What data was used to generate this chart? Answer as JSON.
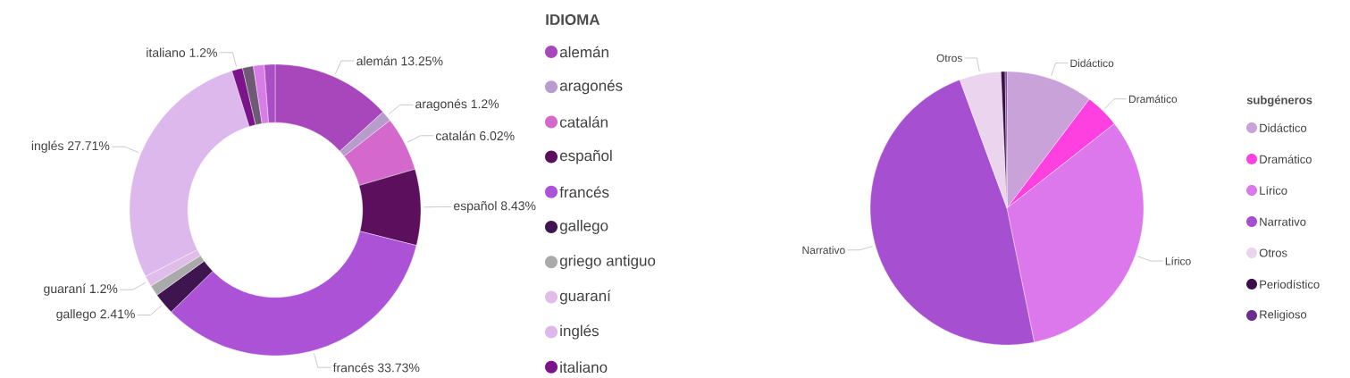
{
  "chart_data": [
    {
      "type": "donut",
      "legend_title": "IDIOMA",
      "legend": "right",
      "categories": [
        "alemán",
        "aragonés",
        "catalán",
        "español",
        "francés",
        "gallego",
        "griego antiguo",
        "guaraní",
        "inglés",
        "italiano",
        null,
        null,
        null
      ],
      "values": [
        13.25,
        1.2,
        6.02,
        8.43,
        33.73,
        2.41,
        1.2,
        1.2,
        27.71,
        1.2,
        1.2,
        1.2,
        1.2
      ],
      "colors": [
        "#a846bc",
        "#b89ccc",
        "#d468cc",
        "#5c0f5c",
        "#ac52d6",
        "#3f1550",
        "#aaaaaa",
        "#e0bde8",
        "#dcb8ec",
        "#7a1488",
        "#6e5a74",
        "#d87ce8",
        "#a94fc6"
      ],
      "value_labels": [
        "alemán 13.25%",
        "aragonés 1.2%",
        "catalán 6.02%",
        "español 8.43%",
        "francés 33.73%",
        "gallego 2.41%",
        null,
        "guaraní 1.2%",
        "inglés 27.71%",
        "italiano 1.2%",
        null,
        null,
        null
      ]
    },
    {
      "type": "pie",
      "legend_title": "subgéneros",
      "legend": "right",
      "categories": [
        "Didáctico",
        "Dramático",
        "Lírico",
        "Narrativo",
        "Otros",
        "Periodístico",
        "Religioso"
      ],
      "values": [
        10.3,
        4.1,
        32.4,
        47.6,
        4.9,
        0.5,
        0.2
      ],
      "colors": [
        "#c8a2d8",
        "#ff40e0",
        "#dd78ec",
        "#a64fd0",
        "#ead4ee",
        "#3a0f48",
        "#6a2d8c"
      ],
      "value_labels": [
        "Didáctico",
        "Dramático",
        "Lírico",
        "Narrativo",
        "Otros",
        null,
        null
      ]
    }
  ]
}
